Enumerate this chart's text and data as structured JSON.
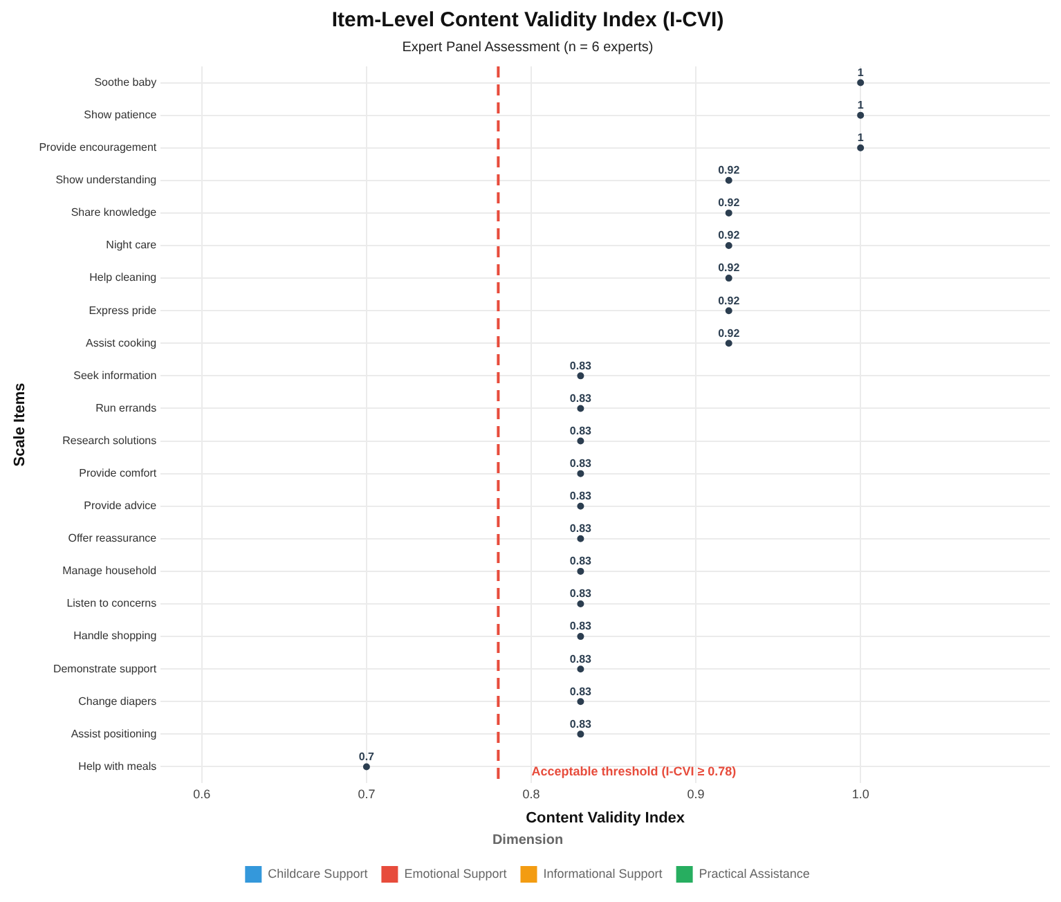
{
  "chart_data": {
    "type": "scatter",
    "title": "Item-Level Content Validity Index (I-CVI)",
    "subtitle": "Expert Panel Assessment (n = 6 experts)",
    "xlabel": "Content Validity Index",
    "ylabel": "Scale Items",
    "legend_title": "Dimension",
    "categories": [
      "Soothe baby",
      "Show patience",
      "Provide encouragement",
      "Show understanding",
      "Share knowledge",
      "Night care",
      "Help cleaning",
      "Express pride",
      "Assist cooking",
      "Seek information",
      "Run errands",
      "Research solutions",
      "Provide comfort",
      "Provide advice",
      "Offer reassurance",
      "Manage household",
      "Listen to concerns",
      "Handle shopping",
      "Demonstrate support",
      "Change diapers",
      "Assist positioning",
      "Help with meals"
    ],
    "series": [
      {
        "color": "#2c3e50",
        "values": [
          1,
          1,
          1,
          0.92,
          0.92,
          0.92,
          0.92,
          0.92,
          0.92,
          0.83,
          0.83,
          0.83,
          0.83,
          0.83,
          0.83,
          0.83,
          0.83,
          0.83,
          0.83,
          0.83,
          0.83,
          0.7
        ]
      },
      {
        "name": "Childcare Support",
        "color": "#3498db",
        "values": [
          null,
          null,
          null,
          null,
          null,
          null,
          null,
          null,
          null,
          null,
          null,
          null,
          null,
          null,
          null,
          null,
          null,
          null,
          null,
          null,
          null,
          null
        ]
      },
      {
        "name": "Emotional Support",
        "color": "#e74c3c",
        "values": [
          null,
          null,
          null,
          null,
          null,
          null,
          null,
          null,
          null,
          null,
          null,
          null,
          null,
          null,
          null,
          null,
          null,
          null,
          null,
          null,
          null,
          null
        ]
      },
      {
        "name": "Informational Support",
        "color": "#f39c12",
        "values": [
          null,
          null,
          null,
          null,
          null,
          null,
          null,
          null,
          null,
          null,
          null,
          null,
          null,
          null,
          null,
          null,
          null,
          null,
          null,
          null,
          null,
          null
        ]
      },
      {
        "name": "Practical Assistance",
        "color": "#27ae60",
        "values": [
          null,
          null,
          null,
          null,
          null,
          null,
          null,
          null,
          null,
          null,
          null,
          null,
          null,
          null,
          null,
          null,
          null,
          null,
          null,
          null,
          null,
          null
        ]
      }
    ],
    "xlim": [
      0.575,
      1.115
    ],
    "xticks": [
      {
        "value": 0.6,
        "label": "0.6"
      },
      {
        "value": 0.7,
        "label": "0.7"
      },
      {
        "value": 0.8,
        "label": "0.8"
      },
      {
        "value": 0.9,
        "label": "0.9"
      },
      {
        "value": 1.0,
        "label": "1.0"
      }
    ],
    "ref_lines": [
      {
        "axis": "x",
        "value": 0.78,
        "label": "Acceptable threshold (I-CVI ≥ 0.78)",
        "color": "#e74c3c",
        "line_style": "dashed"
      }
    ],
    "orientation": "horizontal",
    "data_labels": true,
    "grid": true,
    "legend": "bottom",
    "marker": "circle"
  }
}
